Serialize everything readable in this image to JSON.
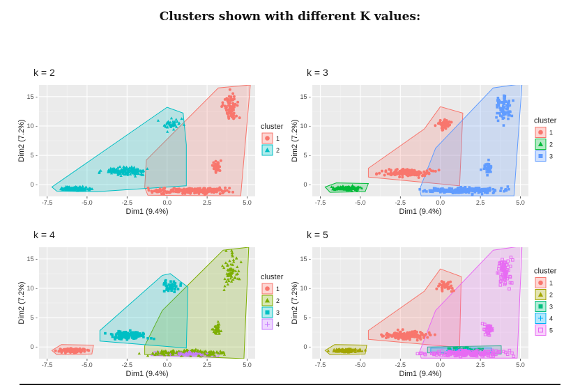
{
  "page": {
    "title": "Clusters shown with different K values:"
  },
  "colors": {
    "panel_bg": "#ebebeb",
    "grid_major": "#ffffff",
    "cluster_palette_k2": [
      "#F8766D",
      "#00BFC4"
    ],
    "cluster_palette_k3": [
      "#F8766D",
      "#00BA38",
      "#619CFF"
    ],
    "cluster_palette_k4": [
      "#F8766D",
      "#7CAE00",
      "#00BFC4",
      "#C77CFF"
    ],
    "cluster_palette_k5": [
      "#F8766D",
      "#A3A500",
      "#00BF7D",
      "#00B0F6",
      "#E76BF3"
    ]
  },
  "chart_data": [
    {
      "type": "scatter",
      "title": "k = 2",
      "xlabel": "Dim1 (9.4%)",
      "ylabel": "Dim2 (7.2%)",
      "xlim": [
        -8,
        5.5
      ],
      "ylim": [
        -2,
        17
      ],
      "x_ticks": [
        -7.5,
        -5.0,
        -2.5,
        0.0,
        2.5,
        5.0
      ],
      "x_tick_labels": [
        "-7.5",
        "-5.0",
        "-2.5",
        "0.0",
        "2.5",
        "5.0"
      ],
      "y_ticks": [
        0,
        5,
        10,
        15
      ],
      "y_tick_labels": [
        "0 -",
        "5 -",
        "10 -",
        "15 -"
      ],
      "grid": true,
      "legend": {
        "title": "cluster",
        "position": "right",
        "items": [
          "1",
          "2"
        ],
        "shapes": [
          "circle",
          "triangle"
        ]
      },
      "clusters": [
        {
          "name": "1",
          "color": "#F8766D",
          "shape": "circle",
          "hull": [
            [
              -1.2,
              -1.8
            ],
            [
              4.6,
              -1.9
            ],
            [
              5.2,
              17
            ],
            [
              3.2,
              16.5
            ],
            [
              -1.3,
              4.2
            ],
            [
              -1.4,
              -0.5
            ]
          ],
          "blobs": [
            {
              "cx": 1.5,
              "cy": -1.0,
              "sx": 2.4,
              "sy": 0.45,
              "n": 220
            },
            {
              "cx": 4.0,
              "cy": 13.0,
              "sx": 0.45,
              "sy": 2.4,
              "n": 70
            },
            {
              "cx": 3.1,
              "cy": 3.0,
              "sx": 0.25,
              "sy": 1.0,
              "n": 35
            }
          ]
        },
        {
          "name": "2",
          "color": "#00BFC4",
          "shape": "triangle",
          "hull": [
            [
              -7.2,
              -0.4
            ],
            [
              -6.9,
              -1.1
            ],
            [
              -4.4,
              -1.2
            ],
            [
              1.2,
              -0.2
            ],
            [
              1.2,
              6.8
            ],
            [
              1.0,
              12.2
            ],
            [
              0.0,
              13.2
            ]
          ],
          "blobs": [
            {
              "cx": -5.7,
              "cy": -0.7,
              "sx": 0.9,
              "sy": 0.3,
              "n": 130
            },
            {
              "cx": -2.7,
              "cy": 2.3,
              "sx": 1.2,
              "sy": 0.65,
              "n": 170
            },
            {
              "cx": 0.3,
              "cy": 10.4,
              "sx": 0.55,
              "sy": 0.9,
              "n": 40
            }
          ]
        }
      ]
    },
    {
      "type": "scatter",
      "title": "k = 3",
      "xlabel": "Dim1 (9.4%)",
      "ylabel": "Dim2 (7.2%)",
      "xlim": [
        -8,
        5.5
      ],
      "ylim": [
        -2,
        17
      ],
      "x_ticks": [
        -7.5,
        -5.0,
        -2.5,
        0.0,
        2.5,
        5.0
      ],
      "x_tick_labels": [
        "-7.5",
        "-5.0",
        "-2.5",
        "0.0",
        "2.5",
        "5.0"
      ],
      "y_ticks": [
        0,
        5,
        10,
        15
      ],
      "y_tick_labels": [
        "0 -",
        "5 -",
        "10 -",
        "15 -"
      ],
      "grid": true,
      "legend": {
        "title": "cluster",
        "position": "right",
        "items": [
          "1",
          "2",
          "3"
        ],
        "shapes": [
          "circle",
          "triangle",
          "square"
        ]
      },
      "clusters": [
        {
          "name": "1",
          "color": "#F8766D",
          "shape": "circle",
          "hull": [
            [
              -4.5,
              1.3
            ],
            [
              1.2,
              -0.2
            ],
            [
              1.4,
              12.2
            ],
            [
              0.0,
              13.3
            ],
            [
              -1.0,
              9.5
            ],
            [
              -4.5,
              2.8
            ]
          ],
          "blobs": [
            {
              "cx": -2.0,
              "cy": 2.0,
              "sx": 1.3,
              "sy": 0.6,
              "n": 170
            },
            {
              "cx": 0.3,
              "cy": 10.4,
              "sx": 0.5,
              "sy": 0.9,
              "n": 40
            }
          ]
        },
        {
          "name": "2",
          "color": "#00BA38",
          "shape": "triangle",
          "hull": [
            [
              -7.2,
              -0.4
            ],
            [
              -6.9,
              -1.3
            ],
            [
              -4.7,
              -1.2
            ],
            [
              -4.5,
              0.2
            ],
            [
              -6.5,
              0.3
            ]
          ],
          "blobs": [
            {
              "cx": -5.9,
              "cy": -0.6,
              "sx": 0.75,
              "sy": 0.3,
              "n": 140
            }
          ]
        },
        {
          "name": "3",
          "color": "#619CFF",
          "shape": "square",
          "hull": [
            [
              -1.2,
              -1.9
            ],
            [
              4.6,
              -1.9
            ],
            [
              5.1,
              17.2
            ],
            [
              3.3,
              16.5
            ],
            [
              -0.3,
              6.2
            ],
            [
              -1.3,
              -0.8
            ]
          ],
          "blobs": [
            {
              "cx": 1.6,
              "cy": -1.0,
              "sx": 2.3,
              "sy": 0.5,
              "n": 220
            },
            {
              "cx": 4.0,
              "cy": 13.0,
              "sx": 0.45,
              "sy": 2.4,
              "n": 75
            },
            {
              "cx": 3.0,
              "cy": 3.0,
              "sx": 0.25,
              "sy": 1.0,
              "n": 35
            }
          ]
        }
      ]
    },
    {
      "type": "scatter",
      "title": "k = 4",
      "xlabel": "Dim1 (9.4%)",
      "ylabel": "Dim2 (7.2%)",
      "xlim": [
        -8,
        5.5
      ],
      "ylim": [
        -2,
        17
      ],
      "x_ticks": [
        -7.5,
        -5.0,
        -2.5,
        0.0,
        2.5,
        5.0
      ],
      "x_tick_labels": [
        "-7.5",
        "-5.0",
        "-2.5",
        "0.0",
        "2.5",
        "5.0"
      ],
      "y_ticks": [
        0,
        5,
        10,
        15
      ],
      "y_tick_labels": [
        "0 -",
        "5 -",
        "10 -",
        "15 -"
      ],
      "grid": true,
      "legend": {
        "title": "cluster",
        "position": "right",
        "items": [
          "1",
          "2",
          "3",
          "4"
        ],
        "shapes": [
          "circle",
          "triangle",
          "square",
          "plus"
        ]
      },
      "clusters": [
        {
          "name": "1",
          "color": "#F8766D",
          "shape": "circle",
          "hull": [
            [
              -7.2,
              -0.6
            ],
            [
              -6.9,
              -1.3
            ],
            [
              -4.7,
              -1.2
            ],
            [
              -4.6,
              0.3
            ],
            [
              -6.6,
              0.4
            ]
          ],
          "blobs": [
            {
              "cx": -5.9,
              "cy": -0.6,
              "sx": 0.75,
              "sy": 0.3,
              "n": 140
            }
          ]
        },
        {
          "name": "2",
          "color": "#7CAE00",
          "shape": "triangle",
          "hull": [
            [
              -1.4,
              -1.3
            ],
            [
              4.8,
              -2.0
            ],
            [
              5.1,
              17.0
            ],
            [
              3.5,
              16.5
            ],
            [
              -0.3,
              6.2
            ],
            [
              -1.4,
              0.2
            ]
          ],
          "blobs": [
            {
              "cx": 1.3,
              "cy": -1.0,
              "sx": 2.2,
              "sy": 0.5,
              "n": 200
            },
            {
              "cx": 4.0,
              "cy": 13.0,
              "sx": 0.45,
              "sy": 2.4,
              "n": 70
            },
            {
              "cx": 3.1,
              "cy": 3.0,
              "sx": 0.25,
              "sy": 1.0,
              "n": 35
            }
          ]
        },
        {
          "name": "3",
          "color": "#00BFC4",
          "shape": "square",
          "hull": [
            [
              -4.2,
              1.0
            ],
            [
              1.2,
              -0.2
            ],
            [
              1.3,
              10.2
            ],
            [
              0.2,
              12.5
            ],
            [
              -0.3,
              12.2
            ],
            [
              -4.2,
              2.8
            ]
          ],
          "blobs": [
            {
              "cx": -2.4,
              "cy": 2.0,
              "sx": 1.0,
              "sy": 0.6,
              "n": 150
            },
            {
              "cx": 0.2,
              "cy": 10.2,
              "sx": 0.5,
              "sy": 1.0,
              "n": 40
            }
          ]
        },
        {
          "name": "4",
          "color": "#C77CFF",
          "shape": "plus",
          "hull": [
            [
              -1.0,
              -1.5
            ],
            [
              3.2,
              -1.7
            ],
            [
              3.3,
              -1.0
            ],
            [
              -0.8,
              -0.8
            ]
          ],
          "blobs": [
            {
              "cx": 1.4,
              "cy": -1.2,
              "sx": 1.0,
              "sy": 0.25,
              "n": 50
            }
          ]
        }
      ]
    },
    {
      "type": "scatter",
      "title": "k = 5",
      "xlabel": "Dim1 (9.4%)",
      "ylabel": "Dim2 (7.2%)",
      "xlim": [
        -8,
        5.5
      ],
      "ylim": [
        -2,
        17
      ],
      "x_ticks": [
        -7.5,
        -5.0,
        -2.5,
        0.0,
        2.5,
        5.0
      ],
      "x_tick_labels": [
        "-7.5",
        "-5.0",
        "-2.5",
        "0.0",
        "2.5",
        "5.0"
      ],
      "y_ticks": [
        0,
        5,
        10,
        15
      ],
      "y_tick_labels": [
        "0 -",
        "5 -",
        "10 -",
        "15 -"
      ],
      "grid": true,
      "legend": {
        "title": "cluster",
        "position": "right",
        "items": [
          "1",
          "2",
          "3",
          "4",
          "5"
        ],
        "shapes": [
          "circle",
          "triangle",
          "square",
          "plus",
          "boxed-square"
        ]
      },
      "clusters": [
        {
          "name": "1",
          "color": "#F8766D",
          "shape": "circle",
          "hull": [
            [
              -4.5,
              1.3
            ],
            [
              1.2,
              -0.1
            ],
            [
              1.3,
              12.0
            ],
            [
              0.0,
              13.3
            ],
            [
              -1.0,
              9.5
            ],
            [
              -4.5,
              2.8
            ]
          ],
          "blobs": [
            {
              "cx": -2.1,
              "cy": 2.0,
              "sx": 1.3,
              "sy": 0.6,
              "n": 160
            },
            {
              "cx": 0.3,
              "cy": 10.4,
              "sx": 0.5,
              "sy": 0.9,
              "n": 40
            }
          ]
        },
        {
          "name": "2",
          "color": "#A3A500",
          "shape": "triangle",
          "hull": [
            [
              -7.2,
              -0.6
            ],
            [
              -6.9,
              -1.3
            ],
            [
              -4.7,
              -1.2
            ],
            [
              -4.6,
              0.3
            ],
            [
              -6.6,
              0.4
            ]
          ],
          "blobs": [
            {
              "cx": -5.9,
              "cy": -0.6,
              "sx": 0.75,
              "sy": 0.3,
              "n": 140
            }
          ]
        },
        {
          "name": "3",
          "color": "#00BF7D",
          "shape": "square",
          "hull": [
            [
              -0.8,
              -1.0
            ],
            [
              3.8,
              -1.2
            ],
            [
              3.8,
              0.2
            ],
            [
              -0.8,
              0.0
            ]
          ],
          "blobs": [
            {
              "cx": 1.6,
              "cy": -0.5,
              "sx": 1.2,
              "sy": 0.3,
              "n": 60
            }
          ]
        },
        {
          "name": "4",
          "color": "#00B0F6",
          "shape": "plus",
          "hull": [
            [
              -0.6,
              -1.0
            ],
            [
              3.2,
              -1.0
            ],
            [
              3.2,
              -0.2
            ],
            [
              -0.6,
              -0.2
            ]
          ],
          "blobs": [
            {
              "cx": 1.4,
              "cy": -0.6,
              "sx": 0.8,
              "sy": 0.2,
              "n": 30
            }
          ]
        },
        {
          "name": "5",
          "color": "#E76BF3",
          "shape": "boxed-square",
          "hull": [
            [
              -1.2,
              -1.9
            ],
            [
              4.8,
              -1.9
            ],
            [
              5.1,
              17.2
            ],
            [
              3.3,
              16.5
            ],
            [
              -0.3,
              6.2
            ],
            [
              -1.3,
              -0.8
            ]
          ],
          "blobs": [
            {
              "cx": 1.6,
              "cy": -1.1,
              "sx": 2.3,
              "sy": 0.45,
              "n": 200
            },
            {
              "cx": 4.0,
              "cy": 13.0,
              "sx": 0.45,
              "sy": 2.4,
              "n": 70
            },
            {
              "cx": 3.0,
              "cy": 3.0,
              "sx": 0.25,
              "sy": 1.0,
              "n": 35
            }
          ]
        }
      ]
    }
  ]
}
